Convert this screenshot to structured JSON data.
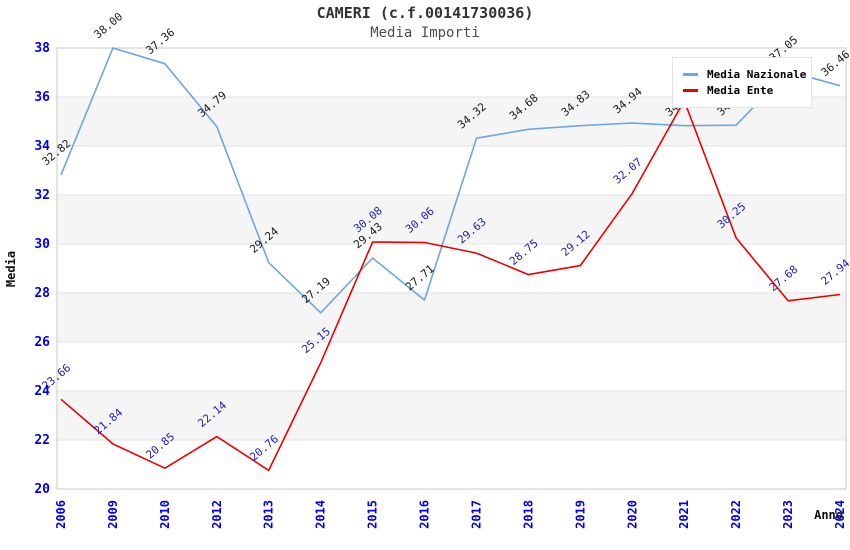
{
  "title": "CAMERI (c.f.00141730036)",
  "subtitle": "Media Importi",
  "colors": {
    "nazionale_line": "#6BA7E0",
    "ente_line": "#EE0000",
    "axis_tick_label": "#0000EE",
    "label_nazionale": "#1A1A1A",
    "label_ente": "#2222BB",
    "band_fill": "#F5F5F5",
    "grid_line": "#E2E2E2",
    "plot_border": "#C9C9C9",
    "axis_title": "#111111"
  },
  "legend": {
    "items": [
      {
        "label": "Media Nazionale",
        "color": "#6BA7E0"
      },
      {
        "label": "Media Ente",
        "color": "#EE0000"
      }
    ]
  },
  "chart_data": {
    "type": "line",
    "title": "CAMERI (c.f.00141730036)",
    "subtitle": "Media Importi",
    "xlabel": "Anno",
    "ylabel": "Media",
    "categories": [
      "2006",
      "2009",
      "2010",
      "2012",
      "2013",
      "2014",
      "2015",
      "2016",
      "2017",
      "2018",
      "2019",
      "2020",
      "2021",
      "2022",
      "2023",
      "2024"
    ],
    "series": [
      {
        "name": "Media Nazionale",
        "color": "#6BA7E0",
        "label_color": "#1A1A1A",
        "values": [
          32.82,
          38.0,
          37.36,
          34.79,
          29.24,
          27.19,
          29.43,
          27.71,
          34.32,
          34.68,
          34.83,
          34.94,
          34.83,
          34.85,
          37.05,
          36.46
        ],
        "labels": [
          "32.82",
          "38.00",
          "37.36",
          "34.79",
          "29.24",
          "27.19",
          "29.43",
          "27.71",
          "34.32",
          "34.68",
          "34.83",
          "34.94",
          "34.83",
          "34.85",
          "37.05",
          "36.46"
        ]
      },
      {
        "name": "Media Ente",
        "color": "#EE0000",
        "label_color": "#2222BB",
        "values": [
          23.66,
          21.84,
          20.85,
          22.14,
          20.76,
          25.15,
          30.08,
          30.06,
          29.63,
          28.75,
          29.12,
          32.07,
          35.85,
          30.25,
          27.68,
          27.94
        ],
        "labels": [
          "23.66",
          "21.84",
          "20.85",
          "22.14",
          "20.76",
          "25.15",
          "30.08",
          "30.06",
          "29.63",
          "28.75",
          "29.12",
          "32.07",
          "",
          "30.25",
          "27.68",
          "27.94"
        ]
      }
    ],
    "ylim": [
      20,
      38
    ],
    "yticks": [
      38,
      36,
      34,
      32,
      30,
      28,
      26,
      24,
      22,
      20
    ],
    "bands": [
      [
        34,
        36
      ],
      [
        30,
        32
      ],
      [
        26,
        28
      ],
      [
        22,
        24
      ]
    ],
    "grid": "horizontal-only",
    "legend_position": "top-right"
  }
}
